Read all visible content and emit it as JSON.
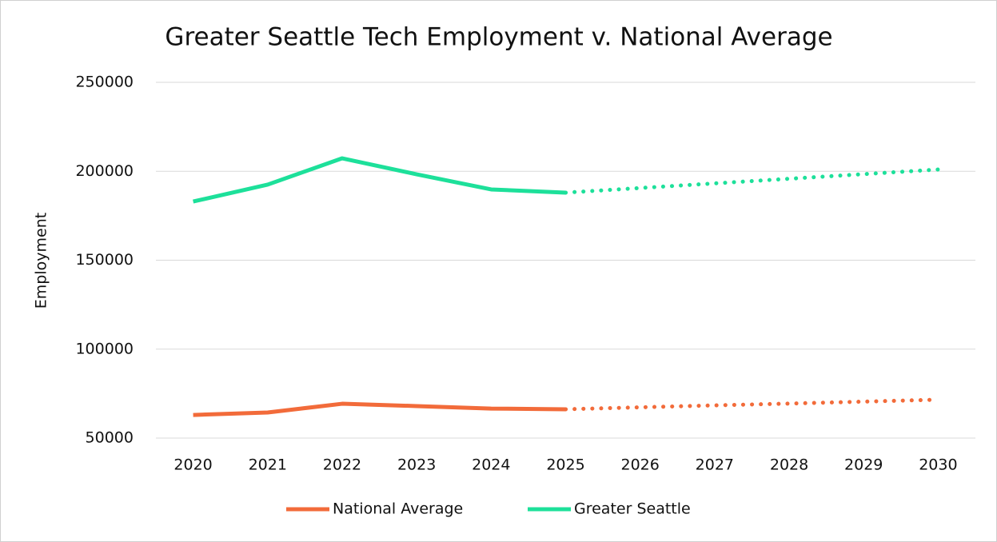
{
  "chart_data": {
    "type": "line",
    "title": "Greater Seattle Tech Employment v. National Average",
    "y_label": "Employment",
    "categories": [
      "2020",
      "2021",
      "2022",
      "2023",
      "2024",
      "2025",
      "2026",
      "2027",
      "2028",
      "2029",
      "2030"
    ],
    "series": [
      {
        "name": "National Average",
        "color": "#f26b3a",
        "values": [
          63000,
          64400,
          69300,
          68000,
          66600,
          66200,
          67300,
          68400,
          69400,
          70500,
          71600
        ]
      },
      {
        "name": "Greater Seattle",
        "color": "#1de09a",
        "values": [
          183000,
          192500,
          207300,
          198300,
          189800,
          188000,
          190600,
          193200,
          195800,
          198400,
          201000
        ]
      }
    ],
    "projected_from": 5,
    "ylim": [
      50000,
      250000
    ],
    "yticks": [
      50000,
      100000,
      150000,
      200000,
      250000
    ],
    "grid": true,
    "legend": "bottom"
  }
}
